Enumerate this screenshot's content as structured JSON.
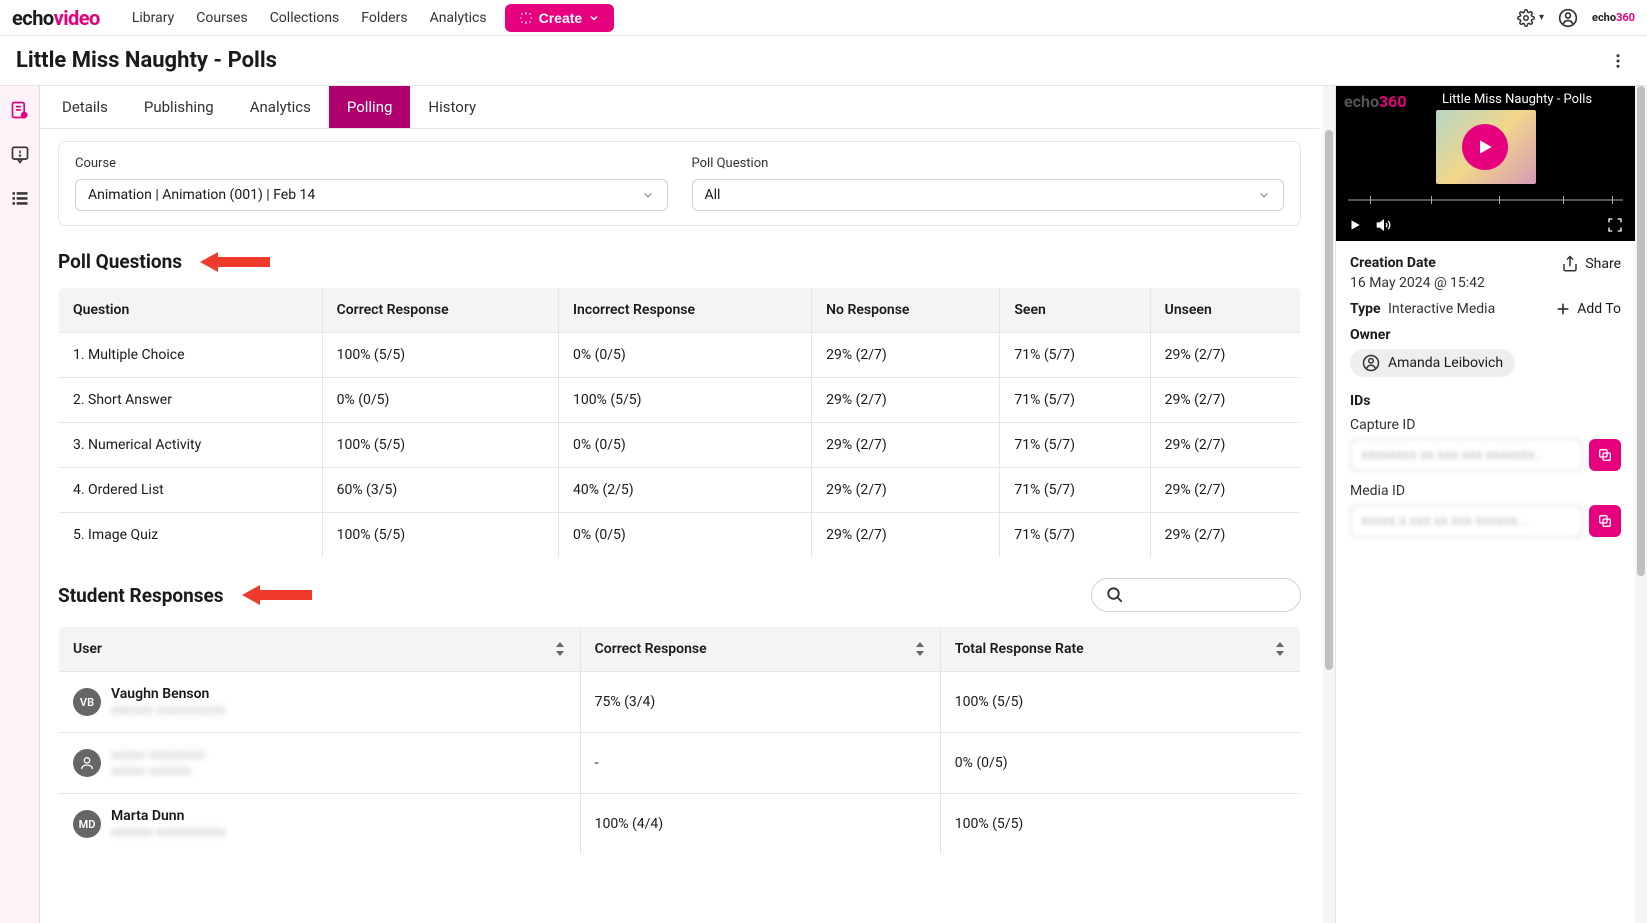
{
  "brand": {
    "part1": "echo",
    "part2": "video",
    "small_part1": "echo",
    "small_part2": "360"
  },
  "nav": {
    "links": [
      "Library",
      "Courses",
      "Collections",
      "Folders",
      "Analytics"
    ],
    "create": "Create"
  },
  "page_title": "Little Miss Naughty - Polls",
  "tabs": [
    "Details",
    "Publishing",
    "Analytics",
    "Polling",
    "History"
  ],
  "active_tab": 3,
  "filters": {
    "course": {
      "label": "Course",
      "value": "Animation | Animation (001) | Feb 14"
    },
    "poll_question": {
      "label": "Poll Question",
      "value": "All"
    }
  },
  "sections": {
    "poll_questions": "Poll Questions",
    "student_responses": "Student Responses"
  },
  "poll_table": {
    "columns": [
      "Question",
      "Correct Response",
      "Incorrect Response",
      "No Response",
      "Seen",
      "Unseen"
    ],
    "rows": [
      [
        "1. Multiple Choice",
        "100% (5/5)",
        "0% (0/5)",
        "29% (2/7)",
        "71% (5/7)",
        "29% (2/7)"
      ],
      [
        "2. Short Answer",
        "0% (0/5)",
        "100% (5/5)",
        "29% (2/7)",
        "71% (5/7)",
        "29% (2/7)"
      ],
      [
        "3. Numerical Activity",
        "100% (5/5)",
        "0% (0/5)",
        "29% (2/7)",
        "71% (5/7)",
        "29% (2/7)"
      ],
      [
        "4. Ordered List",
        "60% (3/5)",
        "40% (2/5)",
        "29% (2/7)",
        "71% (5/7)",
        "29% (2/7)"
      ],
      [
        "5. Image Quiz",
        "100% (5/5)",
        "0% (0/5)",
        "29% (2/7)",
        "71% (5/7)",
        "29% (2/7)"
      ]
    ]
  },
  "student_table": {
    "columns": [
      "User",
      "Correct Response",
      "Total Response Rate"
    ],
    "rows": [
      {
        "initials": "VB",
        "name": "Vaughn Benson",
        "sub": "xxxxxx xxxxxxxxxx",
        "correct": "75% (3/4)",
        "total": "100% (5/5)"
      },
      {
        "initials": "",
        "name": "",
        "sub": "xxxxx xxxxxx",
        "correct": "-",
        "total": "0% (0/5)"
      },
      {
        "initials": "MD",
        "name": "Marta Dunn",
        "sub": "xxxxxx xxxxxxxxxx",
        "correct": "100% (4/4)",
        "total": "100% (5/5)"
      }
    ]
  },
  "right": {
    "video_title": "Little Miss Naughty - Polls",
    "creation_label": "Creation Date",
    "creation_value": "16 May 2024 @ 15:42",
    "share": "Share",
    "type_label": "Type",
    "type_value": "Interactive Media",
    "add_to": "Add To",
    "owner_label": "Owner",
    "owner_name": "Amanda Leibovich",
    "ids_label": "IDs",
    "capture_id_label": "Capture ID",
    "capture_id_value": "xxxxxxxx xx xxx xxx xxxxxxx..",
    "media_id_label": "Media ID",
    "media_id_value": "xxxxx x xxx xx xxx xxxxxx..."
  },
  "colors": {
    "accent": "#e6007e",
    "tab_active": "#b0006d",
    "red_arrow": "#f03a2e"
  }
}
